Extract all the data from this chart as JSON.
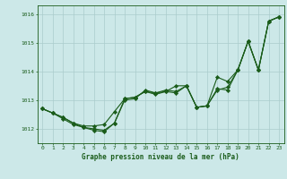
{
  "background_color": "#cce8e8",
  "plot_bg_color": "#cce8e8",
  "grid_color": "#aacccc",
  "line_color": "#1a5c1a",
  "marker_color": "#1a5c1a",
  "xlabel": "Graphe pression niveau de la mer (hPa)",
  "xlim": [
    -0.5,
    23.5
  ],
  "ylim": [
    1011.5,
    1016.3
  ],
  "yticks": [
    1012,
    1013,
    1014,
    1015,
    1016
  ],
  "xticks": [
    0,
    1,
    2,
    3,
    4,
    5,
    6,
    7,
    8,
    9,
    10,
    11,
    12,
    13,
    14,
    15,
    16,
    17,
    18,
    19,
    20,
    21,
    22,
    23
  ],
  "series": [
    [
      1012.7,
      1012.55,
      1012.4,
      1012.2,
      1012.05,
      1012.0,
      1011.95,
      1012.2,
      1013.05,
      1013.1,
      1013.3,
      1013.2,
      1013.3,
      1013.25,
      1013.5,
      1012.75,
      1012.8,
      1013.4,
      1013.35,
      1014.05,
      1015.05,
      1014.05,
      1015.75,
      1015.9
    ],
    [
      1012.7,
      1012.55,
      1012.4,
      1012.2,
      1012.1,
      1012.1,
      1012.15,
      1012.6,
      1013.05,
      1013.1,
      1013.3,
      1013.25,
      1013.35,
      1013.3,
      1013.5,
      1012.75,
      1012.8,
      1013.35,
      1013.45,
      1014.05,
      1015.05,
      1014.05,
      1015.75,
      1015.9
    ],
    [
      1012.7,
      1012.55,
      1012.35,
      1012.15,
      1012.05,
      1011.95,
      1011.9,
      1012.2,
      1013.0,
      1013.05,
      1013.35,
      1013.25,
      1013.3,
      1013.5,
      1013.5,
      1012.75,
      1012.8,
      1013.8,
      1013.65,
      1014.05,
      1015.05,
      1014.05,
      1015.75,
      1015.9
    ]
  ]
}
